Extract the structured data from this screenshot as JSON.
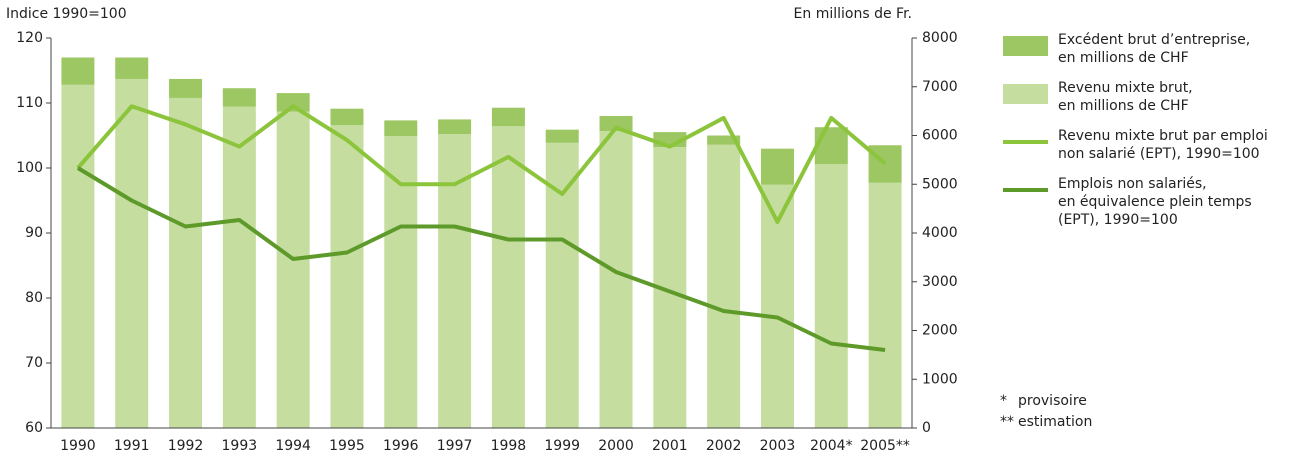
{
  "chart_data": {
    "type": "bar",
    "y_label": "Indice 1990=100",
    "y2_label": "En millions de Fr.",
    "categories": [
      "1990",
      "1991",
      "1992",
      "1993",
      "1994",
      "1995",
      "1996",
      "1997",
      "1998",
      "1999",
      "2000",
      "2001",
      "2002",
      "2003",
      "2004*",
      "2005**"
    ],
    "ylim": [
      60,
      120
    ],
    "yticks": [
      60,
      70,
      80,
      90,
      100,
      110,
      120
    ],
    "y2lim": [
      0,
      8000
    ],
    "y2ticks": [
      0,
      1000,
      2000,
      3000,
      4000,
      5000,
      6000,
      7000,
      8000
    ],
    "grid": false,
    "legend": "right",
    "series": [
      {
        "name": "Excédent brut d’entreprise,\nen millions de CHF",
        "type": "bar",
        "axis": "y2",
        "color": "#9dc763",
        "values": [
          560,
          440,
          390,
          380,
          380,
          340,
          320,
          300,
          380,
          270,
          310,
          310,
          190,
          740,
          760,
          770
        ]
      },
      {
        "name": "Revenu mixte brut,\nen millions de CHF",
        "type": "bar",
        "axis": "y2",
        "color": "#c5dea0",
        "values": [
          7040,
          7160,
          6770,
          6590,
          6490,
          6210,
          5990,
          6030,
          6190,
          5850,
          6090,
          5760,
          5810,
          4990,
          5410,
          5030
        ]
      },
      {
        "name": "Revenu mixte brut par emploi\nnon salarié (EPT), 1990=100",
        "type": "line",
        "color": "#8cc43c",
        "values": [
          100,
          109.5,
          106.7,
          103.3,
          109.5,
          104.3,
          97.5,
          97.5,
          101.7,
          96,
          106.2,
          103.3,
          107.7,
          91.7,
          107.7,
          100.7
        ]
      },
      {
        "name": "Emplois non salariés,\nen équivalence plein temps\n(EPT), 1990=100",
        "type": "line",
        "color": "#5e9a2a",
        "values": [
          100,
          95,
          91,
          92,
          86,
          87,
          91,
          91,
          89,
          89,
          84,
          81,
          78,
          77,
          73,
          72
        ]
      }
    ],
    "notes": [
      {
        "symbol": "*",
        "text": "provisoire"
      },
      {
        "symbol": "**",
        "text": "estimation"
      }
    ]
  }
}
